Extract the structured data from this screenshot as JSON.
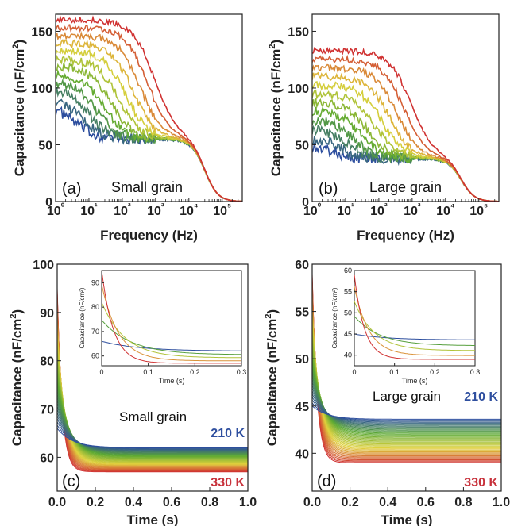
{
  "chart_data": [
    {
      "panel": "(a)",
      "type": "line",
      "label": "Small grain",
      "xlabel": "Frequency (Hz)",
      "ylabel": "Capacitance (nF/cm²)",
      "x_scale": "log",
      "xlim": [
        1,
        400000
      ],
      "ylim": [
        0,
        165
      ],
      "x_ticks": [
        1,
        10,
        100,
        1000,
        10000,
        100000
      ],
      "x_tick_labels": [
        "10⁰",
        "10¹",
        "10²",
        "10³",
        "10⁴",
        "10⁵"
      ],
      "y_ticks": [
        0,
        50,
        100,
        150
      ],
      "y_tick_labels": [
        "0",
        "50",
        "100",
        "150"
      ],
      "plateau": 55,
      "rolloff_hz": 30000,
      "lowfreq_min": 85,
      "lowfreq_max": 160,
      "n_curves": 12
    },
    {
      "panel": "(b)",
      "type": "line",
      "label": "Large grain",
      "xlabel": "Frequency (Hz)",
      "ylabel": "Capacitance (nF/cm²)",
      "x_scale": "log",
      "xlim": [
        1,
        400000
      ],
      "ylim": [
        0,
        165
      ],
      "x_ticks": [
        1,
        10,
        100,
        1000,
        10000,
        100000
      ],
      "x_tick_labels": [
        "10⁰",
        "10¹",
        "10²",
        "10³",
        "10⁴",
        "10⁵"
      ],
      "y_ticks": [
        0,
        50,
        100,
        150
      ],
      "y_tick_labels": [
        "0",
        "50",
        "100",
        "150"
      ],
      "plateau": 38,
      "rolloff_hz": 30000,
      "lowfreq_min": 50,
      "lowfreq_max": 133,
      "n_curves": 12
    },
    {
      "panel": "(c)",
      "type": "line",
      "label": "Small grain",
      "xlabel": "Time (s)",
      "ylabel": "Capacitance (nF/cm²)",
      "xlim": [
        0,
        1
      ],
      "ylim": [
        53,
        100
      ],
      "x_ticks": [
        0,
        0.2,
        0.4,
        0.6,
        0.8,
        1.0
      ],
      "x_tick_labels": [
        "0.0",
        "0.2",
        "0.4",
        "0.6",
        "0.8",
        "1.0"
      ],
      "y_ticks": [
        60,
        70,
        80,
        90,
        100
      ],
      "y_tick_labels": [
        "60",
        "70",
        "80",
        "90",
        "100"
      ],
      "series_range_labels": [
        "210 K",
        "330 K"
      ],
      "final_values": [
        62,
        57
      ],
      "start_values": [
        66,
        95
      ],
      "n_curves": 45,
      "inset": {
        "xlabel": "Time (s)",
        "ylabel": "Capacitance (nF/cm²)",
        "xlim": [
          0,
          0.3
        ],
        "ylim": [
          56,
          95
        ],
        "x_ticks": [
          0,
          0.1,
          0.2,
          0.3
        ],
        "x_tick_labels": [
          "0",
          "0.1",
          "0.2",
          "0.3"
        ],
        "y_ticks": [
          60,
          70,
          80,
          90
        ],
        "y_tick_labels": [
          "60",
          "70",
          "80",
          "90"
        ]
      }
    },
    {
      "panel": "(d)",
      "type": "line",
      "label": "Large grain",
      "xlabel": "Time (s)",
      "ylabel": "Capacitance (nF/cm²)",
      "xlim": [
        0,
        1
      ],
      "ylim": [
        36,
        60
      ],
      "x_ticks": [
        0,
        0.2,
        0.4,
        0.6,
        0.8,
        1.0
      ],
      "x_tick_labels": [
        "0.0",
        "0.2",
        "0.4",
        "0.6",
        "0.8",
        "1.0"
      ],
      "y_ticks": [
        40,
        45,
        50,
        55,
        60
      ],
      "y_tick_labels": [
        "40",
        "45",
        "50",
        "55",
        "60"
      ],
      "series_range_labels": [
        "210 K",
        "330 K"
      ],
      "final_values": [
        43.6,
        39
      ],
      "start_values": [
        45,
        59
      ],
      "n_curves": 45,
      "inset": {
        "xlabel": "Time (s)",
        "ylabel": "Capacitance (nF/cm²)",
        "xlim": [
          0,
          0.3
        ],
        "ylim": [
          37.5,
          60
        ],
        "x_ticks": [
          0,
          0.1,
          0.2,
          0.3
        ],
        "x_tick_labels": [
          "0",
          "0.1",
          "0.2",
          "0.3"
        ],
        "y_ticks": [
          40,
          45,
          50,
          55,
          60
        ],
        "y_tick_labels": [
          "40",
          "45",
          "50",
          "55",
          "60"
        ]
      }
    }
  ],
  "colors": {
    "cold": "#2d4e9e",
    "mid_green": "#5aa832",
    "mid_yellow": "#e0d23c",
    "hot": "#d03232",
    "label_cold": "#2f4f9f",
    "label_hot": "#c8323c"
  }
}
